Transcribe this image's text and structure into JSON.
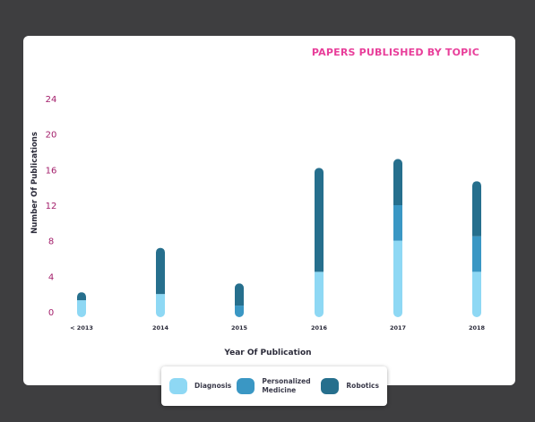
{
  "chart_data": {
    "type": "bar",
    "stacked": true,
    "title": "PAPERS PUBLISHED BY TOPIC",
    "xlabel": "Year Of Publication",
    "ylabel": "Number Of Publications",
    "categories": [
      "< 2013",
      "2014",
      "2015",
      "2016",
      "2017",
      "2018"
    ],
    "ylim": [
      0,
      24
    ],
    "yticks": [
      0,
      4,
      8,
      12,
      16,
      20,
      24
    ],
    "series": [
      {
        "name": "Diagnosis",
        "color": "#8ed8f4",
        "values": [
          1.3,
          2,
          0,
          4.5,
          8,
          4.5
        ]
      },
      {
        "name": "Personalized Medicine",
        "color": "#3a97c4",
        "values": [
          0,
          0,
          0.7,
          0,
          4,
          4
        ]
      },
      {
        "name": "Robotics",
        "color": "#266f8d",
        "values": [
          0.7,
          5,
          2.3,
          11.5,
          5,
          6
        ]
      }
    ],
    "legend_position": "bottom",
    "grid": false,
    "title_color": "#e83e9a",
    "tick_color": "#a31d6a"
  }
}
